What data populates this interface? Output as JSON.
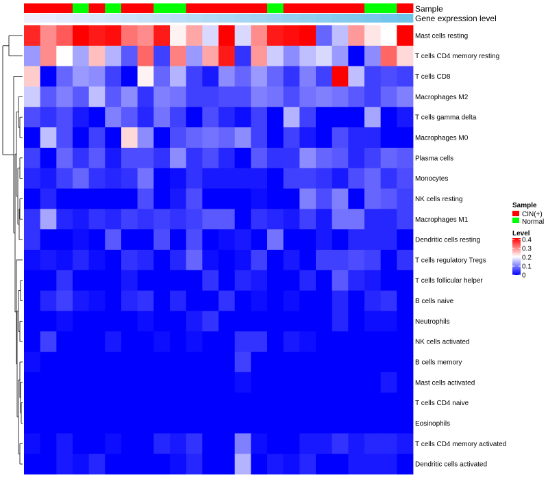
{
  "chart_data": {
    "type": "heatmap",
    "title": "",
    "rows": [
      "Mast cells resting",
      "T cells CD4 memory resting",
      "T cells CD8",
      "Macrophages M2",
      "T cells gamma delta",
      "Macrophages M0",
      "Plasma cells",
      "Monocytes",
      "NK cells resting",
      "Macrophages M1",
      "Dendritic cells resting",
      "T cells regulatory  Tregs",
      "T cells follicular helper",
      "B cells naive",
      "Neutrophils",
      "NK cells activated",
      "B cells memory",
      "Mast cells activated",
      "T cells CD4 naive",
      "Eosinophils",
      "T cells CD4 memory activated",
      "Dendritic cells activated"
    ],
    "sample_annotation": {
      "label": "Sample",
      "values": [
        "CIN(+)",
        "CIN(+)",
        "CIN(+)",
        "Normal",
        "CIN(+)",
        "Normal",
        "CIN(+)",
        "CIN(+)",
        "Normal",
        "Normal",
        "CIN(+)",
        "CIN(+)",
        "CIN(+)",
        "CIN(+)",
        "CIN(+)",
        "Normal",
        "CIN(+)",
        "CIN(+)",
        "CIN(+)",
        "CIN(+)",
        "CIN(+)",
        "Normal",
        "Normal",
        "CIN(+)"
      ]
    },
    "gene_expression_annotation": {
      "label": "Gene expression level",
      "values": [
        0.02,
        0.04,
        0.06,
        0.08,
        0.1,
        0.12,
        0.14,
        0.16,
        0.18,
        0.2,
        0.22,
        0.24,
        0.26,
        0.28,
        0.3,
        0.32,
        0.34,
        0.36,
        0.38,
        0.4,
        0.42,
        0.44,
        0.46,
        0.48
      ]
    },
    "values": [
      [
        0.37,
        0.29,
        0.33,
        0.4,
        0.38,
        0.39,
        0.31,
        0.29,
        0.38,
        0.21,
        0.27,
        0.17,
        0.4,
        0.17,
        0.29,
        0.38,
        0.39,
        0.4,
        0.08,
        0.15,
        0.28,
        0.22,
        0.2,
        0.4
      ],
      [
        0.12,
        0.29,
        0.2,
        0.13,
        0.25,
        0.14,
        0.07,
        0.32,
        0.05,
        0.3,
        0.12,
        0.27,
        0.38,
        0.04,
        0.28,
        0.16,
        0.11,
        0.15,
        0.17,
        0.12,
        0.0,
        0.11,
        0.32,
        0.23
      ],
      [
        0.24,
        0.0,
        0.08,
        0.12,
        0.11,
        0.05,
        0.0,
        0.21,
        0.08,
        0.14,
        0.05,
        0.02,
        0.11,
        0.08,
        0.12,
        0.08,
        0.04,
        0.1,
        0.05,
        0.4,
        0.15,
        0.05,
        0.06,
        0.05
      ],
      [
        0.16,
        0.07,
        0.1,
        0.07,
        0.15,
        0.07,
        0.11,
        0.04,
        0.1,
        0.09,
        0.05,
        0.05,
        0.06,
        0.06,
        0.1,
        0.09,
        0.06,
        0.09,
        0.1,
        0.09,
        0.07,
        0.05,
        0.08,
        0.1
      ],
      [
        0.06,
        0.04,
        0.06,
        0.02,
        0.0,
        0.1,
        0.07,
        0.03,
        0.09,
        0.05,
        0.0,
        0.06,
        0.03,
        0.01,
        0.05,
        0.0,
        0.14,
        0.05,
        0.0,
        0.0,
        0.0,
        0.13,
        0.0,
        0.02
      ],
      [
        0.0,
        0.15,
        0.06,
        0.0,
        0.05,
        0.0,
        0.23,
        0.11,
        0.0,
        0.06,
        0.08,
        0.09,
        0.08,
        0.11,
        0.05,
        0.0,
        0.05,
        0.02,
        0.0,
        0.06,
        0.03,
        0.03,
        0.0,
        0.0
      ],
      [
        0.05,
        0.0,
        0.08,
        0.04,
        0.07,
        0.02,
        0.06,
        0.06,
        0.04,
        0.11,
        0.04,
        0.06,
        0.03,
        0.0,
        0.07,
        0.04,
        0.04,
        0.11,
        0.08,
        0.07,
        0.03,
        0.05,
        0.08,
        0.07
      ],
      [
        0.03,
        0.02,
        0.05,
        0.08,
        0.04,
        0.03,
        0.04,
        0.09,
        0.0,
        0.01,
        0.04,
        0.02,
        0.02,
        0.02,
        0.02,
        0.0,
        0.05,
        0.05,
        0.04,
        0.02,
        0.06,
        0.08,
        0.04,
        0.06
      ],
      [
        0.0,
        0.03,
        0.0,
        0.0,
        0.0,
        0.0,
        0.0,
        0.06,
        0.0,
        0.02,
        0.06,
        0.0,
        0.0,
        0.0,
        0.01,
        0.0,
        0.0,
        0.1,
        0.06,
        0.1,
        0.0,
        0.08,
        0.07,
        0.05
      ],
      [
        0.04,
        0.13,
        0.03,
        0.02,
        0.04,
        0.03,
        0.05,
        0.04,
        0.05,
        0.04,
        0.05,
        0.07,
        0.07,
        0.0,
        0.04,
        0.03,
        0.02,
        0.05,
        0.02,
        0.09,
        0.09,
        0.03,
        0.03,
        0.05
      ],
      [
        0.04,
        0.0,
        0.0,
        0.01,
        0.0,
        0.07,
        0.0,
        0.0,
        0.06,
        0.0,
        0.06,
        0.0,
        0.01,
        0.02,
        0.0,
        0.09,
        0.0,
        0.0,
        0.02,
        0.0,
        0.03,
        0.03,
        0.03,
        0.0
      ],
      [
        0.01,
        0.02,
        0.01,
        0.03,
        0.01,
        0.0,
        0.04,
        0.03,
        0.0,
        0.03,
        0.08,
        0.01,
        0.0,
        0.01,
        0.05,
        0.0,
        0.02,
        0.0,
        0.05,
        0.05,
        0.06,
        0.05,
        0.0,
        0.04
      ],
      [
        0.0,
        0.0,
        0.04,
        0.0,
        0.0,
        0.0,
        0.02,
        0.0,
        0.0,
        0.0,
        0.0,
        0.04,
        0.0,
        0.03,
        0.02,
        0.0,
        0.0,
        0.03,
        0.0,
        0.07,
        0.03,
        0.02,
        0.0,
        0.0
      ],
      [
        0.0,
        0.03,
        0.05,
        0.02,
        0.01,
        0.0,
        0.03,
        0.04,
        0.0,
        0.03,
        0.0,
        0.0,
        0.04,
        0.0,
        0.01,
        0.0,
        0.01,
        0.0,
        0.0,
        0.03,
        0.0,
        0.03,
        0.04,
        0.0
      ],
      [
        0.0,
        0.0,
        0.01,
        0.0,
        0.0,
        0.0,
        0.0,
        0.01,
        0.0,
        0.0,
        0.02,
        0.04,
        0.0,
        0.0,
        0.0,
        0.0,
        0.0,
        0.0,
        0.0,
        0.03,
        0.0,
        0.01,
        0.01,
        0.0
      ],
      [
        0.0,
        0.05,
        0.0,
        0.0,
        0.0,
        0.02,
        0.0,
        0.0,
        0.01,
        0.0,
        0.01,
        0.0,
        0.0,
        0.04,
        0.04,
        0.0,
        0.02,
        0.01,
        0.0,
        0.0,
        0.0,
        0.0,
        0.0,
        0.0
      ],
      [
        0.01,
        0.0,
        0.0,
        0.0,
        0.0,
        0.0,
        0.0,
        0.0,
        0.0,
        0.0,
        0.0,
        0.0,
        0.0,
        0.05,
        0.0,
        0.0,
        0.0,
        0.0,
        0.0,
        0.0,
        0.0,
        0.0,
        0.0,
        0.0
      ],
      [
        0.0,
        0.0,
        0.0,
        0.0,
        0.0,
        0.0,
        0.0,
        0.0,
        0.0,
        0.0,
        0.0,
        0.0,
        0.0,
        0.01,
        0.0,
        0.0,
        0.0,
        0.0,
        0.0,
        0.0,
        0.0,
        0.0,
        0.02,
        0.0
      ],
      [
        0.0,
        0.0,
        0.0,
        0.0,
        0.0,
        0.0,
        0.0,
        0.0,
        0.0,
        0.0,
        0.0,
        0.0,
        0.0,
        0.0,
        0.0,
        0.0,
        0.0,
        0.0,
        0.0,
        0.0,
        0.0,
        0.0,
        0.0,
        0.0
      ],
      [
        0.0,
        0.0,
        0.0,
        0.0,
        0.0,
        0.0,
        0.0,
        0.0,
        0.0,
        0.0,
        0.0,
        0.0,
        0.0,
        0.0,
        0.0,
        0.0,
        0.0,
        0.0,
        0.0,
        0.0,
        0.0,
        0.0,
        0.0,
        0.0
      ],
      [
        0.01,
        0.0,
        0.02,
        0.0,
        0.0,
        0.01,
        0.0,
        0.0,
        0.03,
        0.02,
        0.04,
        0.0,
        0.0,
        0.1,
        0.01,
        0.0,
        0.0,
        0.02,
        0.02,
        0.04,
        0.02,
        0.03,
        0.03,
        0.02
      ],
      [
        0.0,
        0.0,
        0.02,
        0.01,
        0.03,
        0.0,
        0.0,
        0.0,
        0.0,
        0.01,
        0.03,
        0.0,
        0.0,
        0.14,
        0.0,
        0.02,
        0.01,
        0.03,
        0.0,
        0.0,
        0.02,
        0.02,
        0.02,
        0.0
      ]
    ],
    "color_scale": {
      "title": "Level",
      "min": 0,
      "max": 0.4,
      "ticks": [
        0,
        0.1,
        0.2,
        0.3,
        0.4
      ],
      "tick_labels": [
        "0",
        "0.1",
        "0.2",
        "0.3",
        "0.4"
      ],
      "colors": {
        "low": "#0000ff",
        "mid": "#ffffff",
        "high": "#ff0000"
      }
    },
    "sample_legend": {
      "title": "Sample",
      "entries": [
        {
          "label": "CIN(+)",
          "color": "#ff0000"
        },
        {
          "label": "Normal",
          "color": "#00ff00"
        }
      ]
    },
    "gene_expression_colors": {
      "low": "#eeeeff",
      "high": "#6ec3ea"
    },
    "dendrogram": "row clustering tree drawn on the left"
  }
}
